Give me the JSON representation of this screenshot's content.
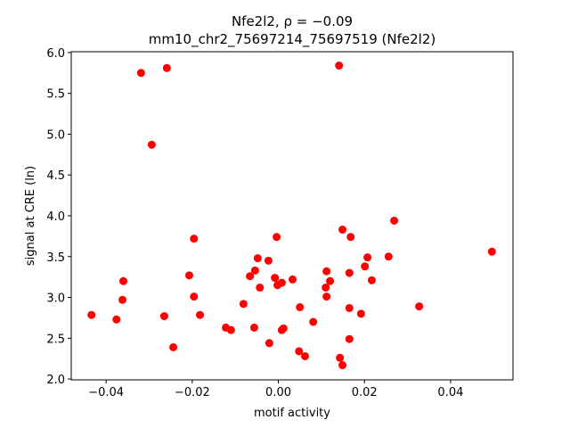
{
  "chart_data": {
    "type": "scatter",
    "title_line1": "Nfe2l2, ρ = −0.09",
    "title_line2": "mm10_chr2_75697214_75697519 (Nfe2l2)",
    "xlabel": "motif activity",
    "ylabel": "signal at CRE (ln)",
    "xlim": [
      -0.0481,
      0.0545
    ],
    "ylim": [
      1.99,
      6.01
    ],
    "xticks": [
      -0.04,
      -0.02,
      0.0,
      0.02,
      0.04
    ],
    "xtick_labels": [
      "−0.04",
      "−0.02",
      "0.00",
      "0.02",
      "0.04"
    ],
    "yticks": [
      2.0,
      2.5,
      3.0,
      3.5,
      4.0,
      4.5,
      5.0,
      5.5,
      6.0
    ],
    "ytick_labels": [
      "2.0",
      "2.5",
      "3.0",
      "3.5",
      "4.0",
      "4.5",
      "5.0",
      "5.5",
      "6.0"
    ],
    "grid": false,
    "marker_color": "#ff0000",
    "points": [
      [
        -0.0434,
        2.785
      ],
      [
        -0.0376,
        2.73
      ],
      [
        -0.0362,
        2.97
      ],
      [
        -0.036,
        3.2
      ],
      [
        -0.0319,
        5.75
      ],
      [
        -0.0294,
        4.87
      ],
      [
        -0.0259,
        5.81
      ],
      [
        -0.0265,
        2.77
      ],
      [
        -0.0244,
        2.39
      ],
      [
        -0.0207,
        3.27
      ],
      [
        -0.0196,
        3.72
      ],
      [
        -0.0196,
        3.01
      ],
      [
        -0.0182,
        2.785
      ],
      [
        -0.0122,
        2.63
      ],
      [
        -0.011,
        2.6
      ],
      [
        -0.0081,
        2.92
      ],
      [
        -0.0066,
        3.26
      ],
      [
        -0.0054,
        3.33
      ],
      [
        -0.0056,
        2.63
      ],
      [
        -0.0048,
        3.48
      ],
      [
        -0.0043,
        3.12
      ],
      [
        -0.0023,
        3.45
      ],
      [
        -0.0021,
        2.44
      ],
      [
        -0.0008,
        3.24
      ],
      [
        -0.0004,
        3.74
      ],
      [
        -0.0002,
        3.15
      ],
      [
        0.0008,
        3.18
      ],
      [
        0.0008,
        2.6
      ],
      [
        0.0012,
        2.62
      ],
      [
        0.0033,
        3.22
      ],
      [
        0.005,
        2.88
      ],
      [
        0.0048,
        2.34
      ],
      [
        0.0062,
        2.28
      ],
      [
        0.0081,
        2.7
      ],
      [
        0.011,
        3.12
      ],
      [
        0.0112,
        3.01
      ],
      [
        0.0112,
        3.32
      ],
      [
        0.012,
        3.2
      ],
      [
        0.0141,
        5.84
      ],
      [
        0.0143,
        2.26
      ],
      [
        0.0149,
        3.83
      ],
      [
        0.0149,
        2.17
      ],
      [
        0.0165,
        2.49
      ],
      [
        0.0165,
        2.87
      ],
      [
        0.0168,
        3.74
      ],
      [
        0.0165,
        3.3
      ],
      [
        0.0192,
        2.8
      ],
      [
        0.0201,
        3.38
      ],
      [
        0.0207,
        3.49
      ],
      [
        0.0217,
        3.21
      ],
      [
        0.0256,
        3.5
      ],
      [
        0.0269,
        3.94
      ],
      [
        0.0327,
        2.89
      ],
      [
        0.0496,
        3.56
      ]
    ]
  }
}
